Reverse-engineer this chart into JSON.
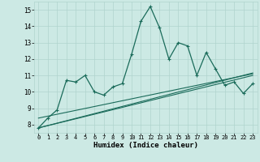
{
  "xlabel": "Humidex (Indice chaleur)",
  "xlim": [
    -0.5,
    23.5
  ],
  "ylim": [
    7.5,
    15.5
  ],
  "yticks": [
    8,
    9,
    10,
    11,
    12,
    13,
    14,
    15
  ],
  "xticks": [
    0,
    1,
    2,
    3,
    4,
    5,
    6,
    7,
    8,
    9,
    10,
    11,
    12,
    13,
    14,
    15,
    16,
    17,
    18,
    19,
    20,
    21,
    22,
    23
  ],
  "bg_color": "#cce9e4",
  "grid_color": "#b0d4ce",
  "line_color": "#1a6b5a",
  "series_spiky": {
    "x": [
      0,
      1,
      2,
      3,
      4,
      5,
      6,
      7,
      8,
      9,
      10,
      11,
      12,
      13,
      14,
      15,
      16,
      17,
      18,
      19,
      20,
      21,
      22,
      23
    ],
    "y": [
      7.8,
      8.4,
      8.9,
      10.7,
      10.6,
      11.0,
      10.0,
      9.8,
      10.3,
      10.5,
      12.3,
      14.3,
      15.2,
      13.9,
      12.0,
      13.0,
      12.8,
      11.0,
      12.4,
      11.4,
      10.4,
      10.6,
      9.9,
      10.5
    ]
  },
  "series_smooth1": {
    "x": [
      0,
      23
    ],
    "y": [
      7.8,
      11.0
    ]
  },
  "series_smooth2": {
    "x": [
      0,
      23
    ],
    "y": [
      7.8,
      11.15
    ]
  },
  "series_smooth3": {
    "x": [
      0,
      23
    ],
    "y": [
      8.4,
      11.1
    ]
  }
}
